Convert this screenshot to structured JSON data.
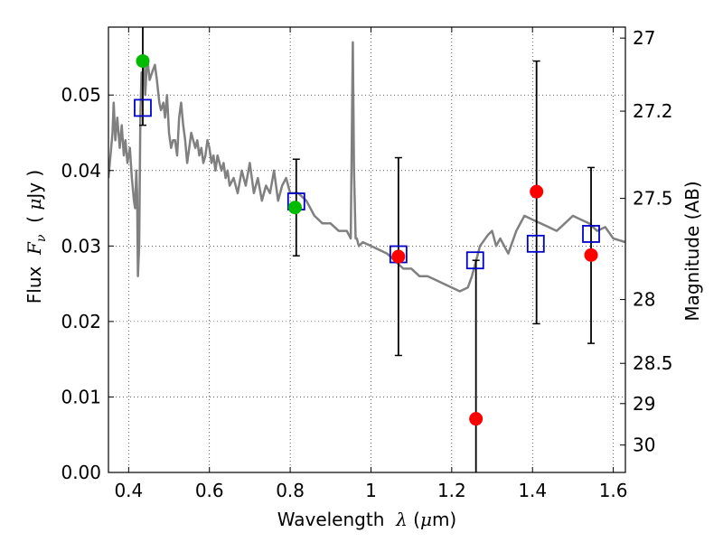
{
  "chart_data": {
    "type": "scatter",
    "xlabel": "Wavelength  λ (μm)",
    "ylabel": "Flux  Fν  ( μJy )",
    "y2label": "Magnitude (AB)",
    "xlim": [
      0.35,
      1.63
    ],
    "ylim": [
      0.0,
      0.059
    ],
    "grid": true,
    "x_ticks": [
      0.4,
      0.6,
      0.8,
      1.0,
      1.2,
      1.4,
      1.6
    ],
    "x_tick_labels": [
      "0.4",
      "0.6",
      "0.8",
      "1",
      "1.2",
      "1.4",
      "1.6"
    ],
    "y_ticks": [
      0.0,
      0.01,
      0.02,
      0.03,
      0.04,
      0.05
    ],
    "y_tick_labels": [
      "0.00",
      "0.01",
      "0.02",
      "0.03",
      "0.04",
      "0.05"
    ],
    "y2_ticks": [
      27,
      27.2,
      27.5,
      28,
      28.5,
      29,
      30
    ],
    "y2_tick_labels": [
      "27",
      "27.2",
      "27.5",
      "28",
      "28.5",
      "29",
      "30"
    ],
    "series": [
      {
        "kind": "line",
        "color": "#808080",
        "x": [
          0.35,
          0.36,
          0.363,
          0.367,
          0.372,
          0.378,
          0.383,
          0.388,
          0.392,
          0.397,
          0.403,
          0.408,
          0.413,
          0.416,
          0.419,
          0.421,
          0.423,
          0.426,
          0.429,
          0.432,
          0.435,
          0.438,
          0.441,
          0.446,
          0.452,
          0.458,
          0.465,
          0.47,
          0.476,
          0.48,
          0.486,
          0.49,
          0.495,
          0.5,
          0.505,
          0.51,
          0.515,
          0.52,
          0.525,
          0.53,
          0.535,
          0.54,
          0.545,
          0.55,
          0.555,
          0.56,
          0.565,
          0.57,
          0.575,
          0.58,
          0.585,
          0.59,
          0.595,
          0.6,
          0.605,
          0.61,
          0.615,
          0.62,
          0.625,
          0.63,
          0.635,
          0.64,
          0.645,
          0.65,
          0.66,
          0.67,
          0.68,
          0.69,
          0.7,
          0.71,
          0.72,
          0.73,
          0.74,
          0.75,
          0.76,
          0.77,
          0.78,
          0.79,
          0.8,
          0.82,
          0.84,
          0.86,
          0.88,
          0.9,
          0.92,
          0.94,
          0.95,
          0.955,
          0.958,
          0.962,
          0.965,
          0.97,
          0.98,
          1.0,
          1.02,
          1.04,
          1.06,
          1.08,
          1.1,
          1.12,
          1.14,
          1.16,
          1.18,
          1.2,
          1.22,
          1.24,
          1.25,
          1.26,
          1.27,
          1.29,
          1.3,
          1.31,
          1.32,
          1.34,
          1.36,
          1.38,
          1.4,
          1.42,
          1.44,
          1.46,
          1.48,
          1.5,
          1.52,
          1.54,
          1.56,
          1.58,
          1.6,
          1.63
        ],
        "y": [
          0.039,
          0.045,
          0.049,
          0.044,
          0.047,
          0.043,
          0.046,
          0.042,
          0.044,
          0.041,
          0.043,
          0.039,
          0.036,
          0.035,
          0.04,
          0.037,
          0.026,
          0.03,
          0.047,
          0.053,
          0.052,
          0.054,
          0.05,
          0.055,
          0.052,
          0.053,
          0.054,
          0.052,
          0.049,
          0.048,
          0.049,
          0.047,
          0.05,
          0.045,
          0.043,
          0.044,
          0.044,
          0.042,
          0.047,
          0.049,
          0.046,
          0.044,
          0.041,
          0.043,
          0.045,
          0.044,
          0.043,
          0.044,
          0.042,
          0.043,
          0.041,
          0.042,
          0.044,
          0.043,
          0.041,
          0.042,
          0.04,
          0.042,
          0.041,
          0.04,
          0.041,
          0.039,
          0.04,
          0.038,
          0.039,
          0.037,
          0.04,
          0.038,
          0.041,
          0.037,
          0.039,
          0.036,
          0.038,
          0.037,
          0.04,
          0.036,
          0.038,
          0.039,
          0.037,
          0.037,
          0.036,
          0.034,
          0.033,
          0.033,
          0.032,
          0.032,
          0.031,
          0.057,
          0.04,
          0.031,
          0.031,
          0.03,
          0.0305,
          0.03,
          0.0295,
          0.029,
          0.028,
          0.027,
          0.027,
          0.026,
          0.026,
          0.0255,
          0.025,
          0.0245,
          0.024,
          0.0245,
          0.026,
          0.028,
          0.03,
          0.0315,
          0.032,
          0.03,
          0.031,
          0.029,
          0.032,
          0.034,
          0.0335,
          0.033,
          0.0325,
          0.032,
          0.033,
          0.034,
          0.0335,
          0.033,
          0.032,
          0.0325,
          0.031,
          0.0305
        ]
      },
      {
        "kind": "open-square",
        "color": "#0000cc",
        "x": [
          0.435,
          0.815,
          1.068,
          1.258,
          1.408,
          1.545
        ],
        "y": [
          0.0483,
          0.0359,
          0.0289,
          0.0281,
          0.0303,
          0.0316
        ]
      },
      {
        "kind": "filled-circle",
        "color": "#00bb00",
        "x": [
          0.435,
          0.812
        ],
        "y": [
          0.0545,
          0.0351
        ]
      },
      {
        "kind": "filled-circle",
        "color": "#ff0000",
        "x": [
          1.068,
          1.26,
          1.41,
          1.545
        ],
        "y": [
          0.0286,
          0.0071,
          0.0372,
          0.0288
        ]
      }
    ],
    "errorbars": [
      {
        "x": 0.435,
        "y": 0.0483,
        "ylow": 0.046,
        "yhigh": 0.059
      },
      {
        "x": 0.815,
        "y": 0.0359,
        "ylow": 0.0287,
        "yhigh": 0.0415
      },
      {
        "x": 1.068,
        "y": 0.0286,
        "ylow": 0.0155,
        "yhigh": 0.0417
      },
      {
        "x": 1.26,
        "y": 0.0071,
        "ylow": 0.0,
        "yhigh": 0.0281
      },
      {
        "x": 1.41,
        "y": 0.0372,
        "ylow": 0.0197,
        "yhigh": 0.0545
      },
      {
        "x": 1.545,
        "y": 0.0288,
        "ylow": 0.0171,
        "yhigh": 0.0404
      }
    ]
  }
}
